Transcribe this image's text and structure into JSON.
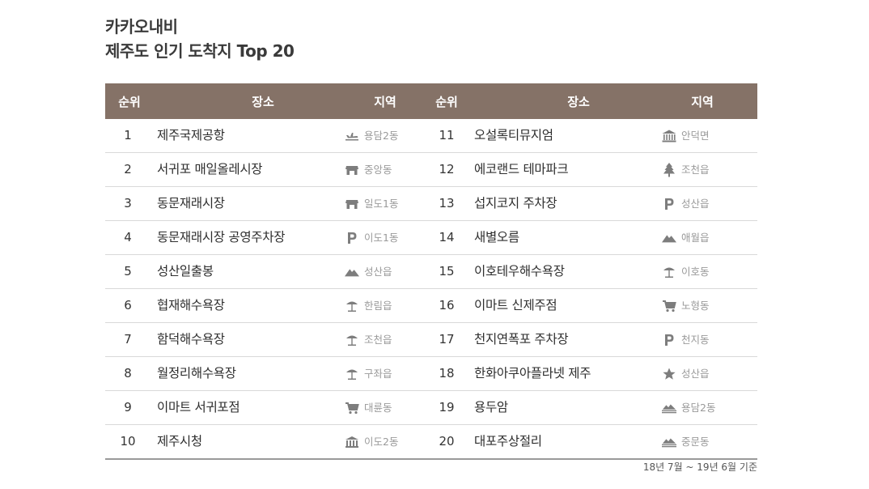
{
  "title": {
    "line1": "카카오내비",
    "line2": "제주도 인기 도착지 Top 20"
  },
  "headers": {
    "rank": "순위",
    "place": "장소",
    "region": "지역"
  },
  "left": [
    {
      "rank": "1",
      "place": "제주국제공항",
      "region": "용담2동",
      "icon": "airplane-icon"
    },
    {
      "rank": "2",
      "place": "서귀포 매일올레시장",
      "region": "중앙동",
      "icon": "market-icon"
    },
    {
      "rank": "3",
      "place": "동문재래시장",
      "region": "일도1동",
      "icon": "market-icon"
    },
    {
      "rank": "4",
      "place": "동문재래시장 공영주차장",
      "region": "이도1동",
      "icon": "parking-icon"
    },
    {
      "rank": "5",
      "place": "성산일출봉",
      "region": "성산읍",
      "icon": "mountain-icon"
    },
    {
      "rank": "6",
      "place": "협재해수욕장",
      "region": "한림읍",
      "icon": "beach-umbrella-icon"
    },
    {
      "rank": "7",
      "place": "함덕해수욕장",
      "region": "조천읍",
      "icon": "beach-umbrella-icon"
    },
    {
      "rank": "8",
      "place": "월정리해수욕장",
      "region": "구좌읍",
      "icon": "beach-umbrella-icon"
    },
    {
      "rank": "9",
      "place": "이마트 서귀포점",
      "region": "대륜동",
      "icon": "shopping-cart-icon"
    },
    {
      "rank": "10",
      "place": "제주시청",
      "region": "이도2동",
      "icon": "government-building-icon"
    }
  ],
  "right": [
    {
      "rank": "11",
      "place": "오설록티뮤지엄",
      "region": "안덕면",
      "icon": "museum-icon"
    },
    {
      "rank": "12",
      "place": "에코랜드 테마파크",
      "region": "조천읍",
      "icon": "tree-icon"
    },
    {
      "rank": "13",
      "place": "섭지코지 주차장",
      "region": "성산읍",
      "icon": "parking-icon"
    },
    {
      "rank": "14",
      "place": "새별오름",
      "region": "애월읍",
      "icon": "mountain-icon"
    },
    {
      "rank": "15",
      "place": "이호테우해수욕장",
      "region": "이호동",
      "icon": "beach-umbrella-icon"
    },
    {
      "rank": "16",
      "place": "이마트 신제주점",
      "region": "노형동",
      "icon": "shopping-cart-icon"
    },
    {
      "rank": "17",
      "place": "천지연폭포 주차장",
      "region": "천지동",
      "icon": "parking-icon"
    },
    {
      "rank": "18",
      "place": "한화아쿠아플라넷 제주",
      "region": "성산읍",
      "icon": "star-icon"
    },
    {
      "rank": "19",
      "place": "용두암",
      "region": "용담2동",
      "icon": "rock-icon"
    },
    {
      "rank": "20",
      "place": "대포주상절리",
      "region": "중문동",
      "icon": "rock-icon"
    }
  ],
  "footnote": "18년 7월 ~ 19년 6월 기준",
  "colors": {
    "header_bg": "#857267",
    "icon": "#7d7d7d"
  }
}
